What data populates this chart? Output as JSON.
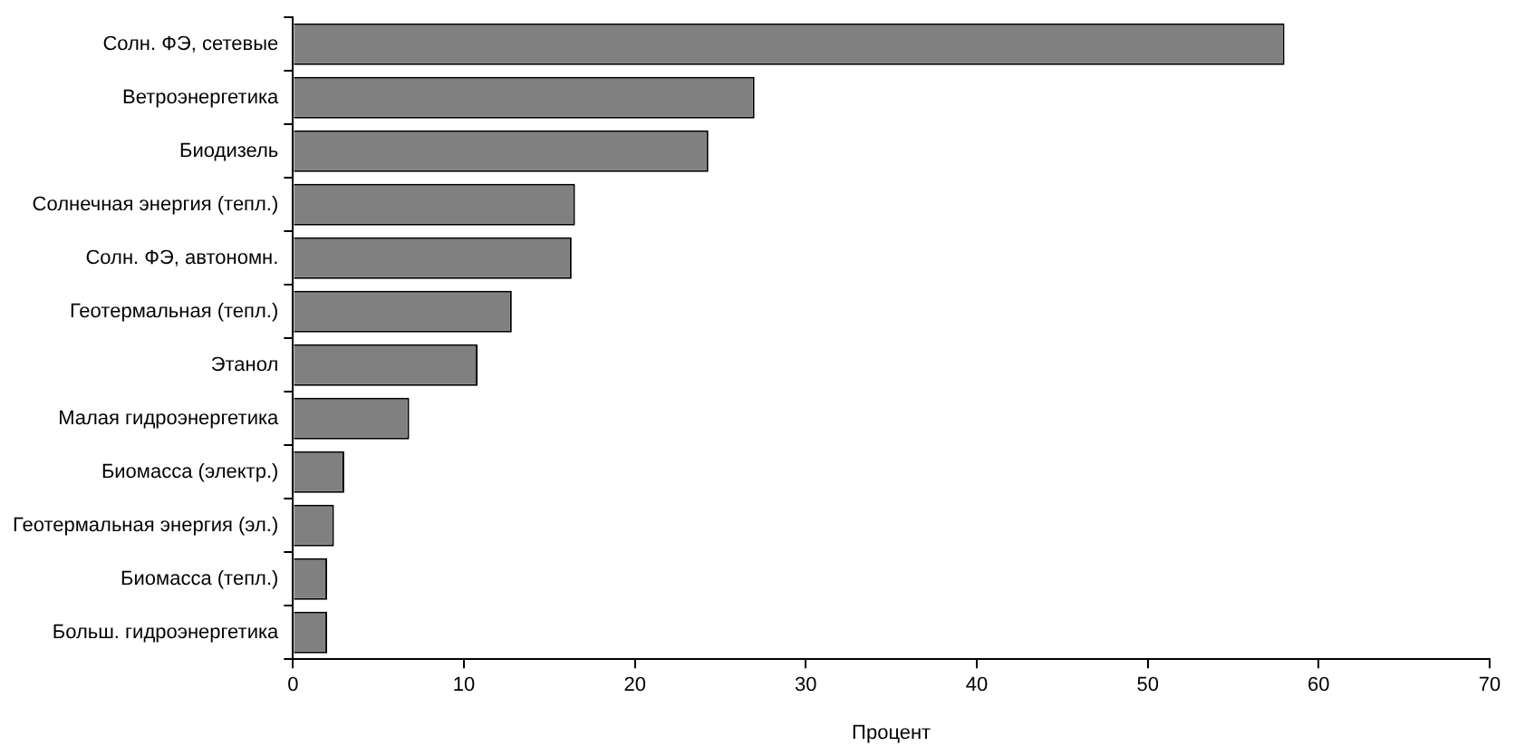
{
  "chart_data": {
    "type": "bar",
    "orientation": "horizontal",
    "xlabel": "Процент",
    "categories": [
      "Солн. ФЭ, сетевые",
      "Ветроэнергетика",
      "Биодизель",
      "Солнечная энергия (тепл.)",
      "Солн. ФЭ, автономн.",
      "Геотермальная (тепл.)",
      "Этанол",
      "Малая гидроэнергетика",
      "Биомасса (электр.)",
      "Геотермальная энергия (эл.)",
      "Биомасса (тепл.)",
      "Больш. гидроэнергетика"
    ],
    "values": [
      58,
      27,
      24.3,
      16.5,
      16.3,
      12.8,
      10.8,
      6.8,
      3,
      2.4,
      2,
      2
    ],
    "color": "#808080",
    "xlim": [
      0,
      70
    ],
    "xticks": [
      0,
      10,
      20,
      30,
      40,
      50,
      60,
      70
    ],
    "grid": false,
    "legend": false
  }
}
